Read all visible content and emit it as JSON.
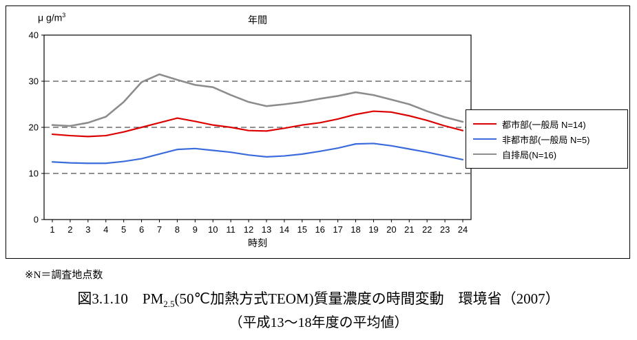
{
  "figure": {
    "note": "※N＝調査地点数",
    "caption_line1_prefix": "図3.1.10　PM",
    "caption_line1_sub": "2.5",
    "caption_line1_rest": "(50℃加熱方式TEOM)質量濃度の時間変動　環境省（2007）",
    "caption_line2": "（平成13～18年度の平均値）"
  },
  "chart_data": {
    "type": "line",
    "title": "年間",
    "unit_prefix": "μ g/m",
    "unit_sup": "3",
    "xlabel": "時刻",
    "x": [
      1,
      2,
      3,
      4,
      5,
      6,
      7,
      8,
      9,
      10,
      11,
      12,
      13,
      14,
      15,
      16,
      17,
      18,
      19,
      20,
      21,
      22,
      23,
      24
    ],
    "ylim": [
      0,
      40
    ],
    "yticks": [
      0,
      10,
      20,
      30,
      40
    ],
    "gridlines_y": [
      10,
      20,
      30
    ],
    "grid": "dashed horizontal",
    "legend_position": "right",
    "series": [
      {
        "name": "都市部(一般局 N=14)",
        "color": "#dd0000",
        "width": 2.2,
        "values": [
          18.5,
          18.2,
          18.0,
          18.2,
          19.0,
          20.0,
          21.0,
          22.0,
          21.3,
          20.5,
          20.0,
          19.3,
          19.2,
          19.8,
          20.5,
          21.0,
          21.8,
          22.8,
          23.5,
          23.3,
          22.5,
          21.5,
          20.3,
          19.3
        ]
      },
      {
        "name": "非都市部(一般局 N=5)",
        "color": "#3a6bdc",
        "width": 2.2,
        "values": [
          12.5,
          12.3,
          12.2,
          12.2,
          12.6,
          13.2,
          14.2,
          15.2,
          15.4,
          15.0,
          14.6,
          14.0,
          13.6,
          13.8,
          14.2,
          14.8,
          15.5,
          16.4,
          16.5,
          16.0,
          15.3,
          14.6,
          13.8,
          13.0
        ]
      },
      {
        "name": "自排局(N=16)",
        "color": "#8c8c8c",
        "width": 2.6,
        "values": [
          20.5,
          20.3,
          21.0,
          22.3,
          25.5,
          29.8,
          31.5,
          30.3,
          29.2,
          28.7,
          27.0,
          25.5,
          24.6,
          25.0,
          25.5,
          26.2,
          26.8,
          27.6,
          27.0,
          26.0,
          25.0,
          23.5,
          22.2,
          21.2
        ]
      }
    ]
  }
}
